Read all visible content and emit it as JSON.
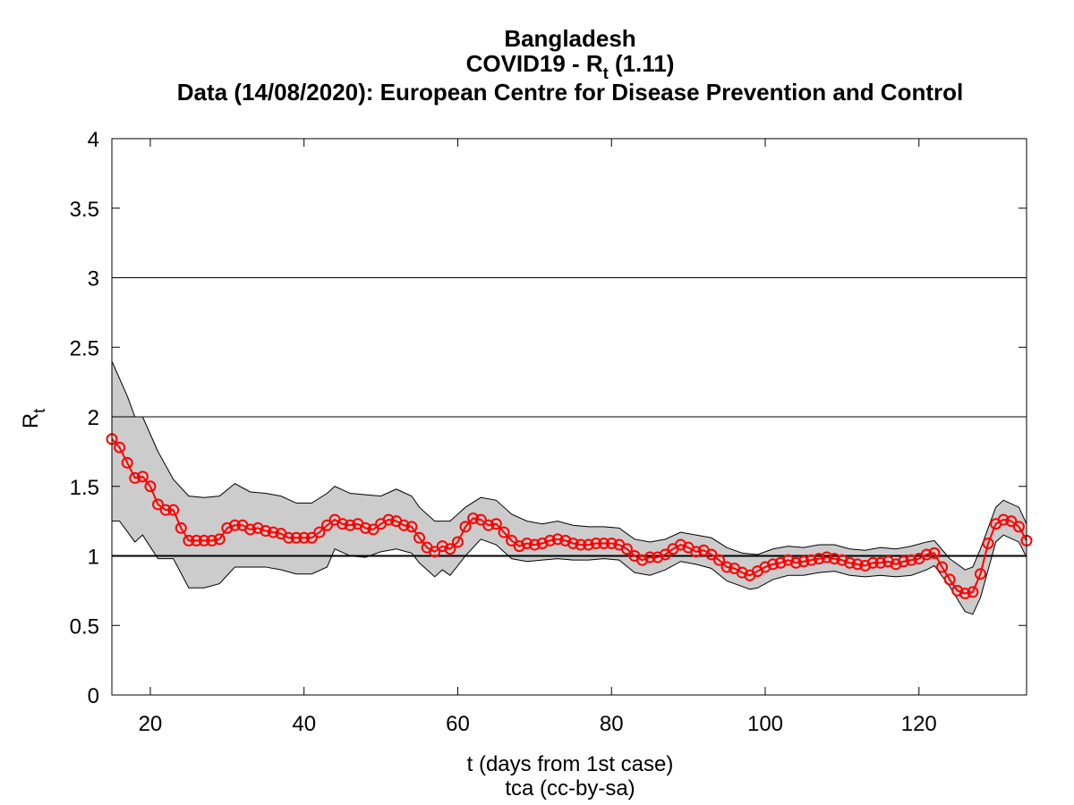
{
  "chart_data": {
    "type": "line",
    "title": "Bangladesh",
    "subtitle": {
      "text": "COVID19 - R",
      "sub": "t",
      "rest": " (1.11)"
    },
    "source": "Data (14/08/2020): European Centre for Disease Prevention and Control",
    "xlabel": "t (days from 1st case)",
    "footer": "tca (cc-by-sa)",
    "ylabel": {
      "text": "R",
      "sub": "t"
    },
    "xlim": [
      15,
      134
    ],
    "ylim": [
      0,
      4
    ],
    "xticks": [
      20,
      40,
      60,
      80,
      100,
      120
    ],
    "yticks": [
      0,
      0.5,
      1,
      1.5,
      2,
      2.5,
      3,
      3.5,
      4
    ],
    "hlines": [
      1,
      2,
      3
    ],
    "color": "#ff0000",
    "band_color": "#cccccc",
    "x": [
      15,
      16,
      17,
      18,
      19,
      20,
      21,
      22,
      23,
      24,
      25,
      26,
      27,
      28,
      29,
      30,
      31,
      32,
      33,
      34,
      35,
      36,
      37,
      38,
      39,
      40,
      41,
      42,
      43,
      44,
      45,
      46,
      47,
      48,
      49,
      50,
      51,
      52,
      53,
      54,
      55,
      56,
      57,
      58,
      59,
      60,
      61,
      62,
      63,
      64,
      65,
      66,
      67,
      68,
      69,
      70,
      71,
      72,
      73,
      74,
      75,
      76,
      77,
      78,
      79,
      80,
      81,
      82,
      83,
      84,
      85,
      86,
      87,
      88,
      89,
      90,
      91,
      92,
      93,
      94,
      95,
      96,
      97,
      98,
      99,
      100,
      101,
      102,
      103,
      104,
      105,
      106,
      107,
      108,
      109,
      110,
      111,
      112,
      113,
      114,
      115,
      116,
      117,
      118,
      119,
      120,
      121,
      122,
      123,
      124,
      125,
      126,
      127,
      128,
      129,
      130,
      131,
      132,
      133,
      134
    ],
    "values": [
      1.84,
      1.78,
      1.67,
      1.56,
      1.57,
      1.5,
      1.37,
      1.33,
      1.33,
      1.2,
      1.11,
      1.11,
      1.11,
      1.11,
      1.12,
      1.2,
      1.22,
      1.22,
      1.19,
      1.2,
      1.18,
      1.17,
      1.16,
      1.13,
      1.13,
      1.13,
      1.13,
      1.17,
      1.22,
      1.26,
      1.23,
      1.22,
      1.23,
      1.2,
      1.19,
      1.23,
      1.26,
      1.25,
      1.22,
      1.21,
      1.13,
      1.06,
      1.03,
      1.07,
      1.05,
      1.1,
      1.21,
      1.27,
      1.26,
      1.22,
      1.23,
      1.17,
      1.11,
      1.07,
      1.09,
      1.08,
      1.09,
      1.11,
      1.12,
      1.11,
      1.09,
      1.08,
      1.08,
      1.09,
      1.09,
      1.09,
      1.08,
      1.05,
      1.0,
      0.97,
      0.99,
      0.99,
      1.01,
      1.05,
      1.08,
      1.06,
      1.03,
      1.04,
      1.01,
      0.97,
      0.92,
      0.91,
      0.88,
      0.86,
      0.89,
      0.92,
      0.94,
      0.95,
      0.97,
      0.95,
      0.96,
      0.97,
      0.98,
      0.99,
      0.98,
      0.97,
      0.95,
      0.94,
      0.93,
      0.95,
      0.95,
      0.96,
      0.94,
      0.96,
      0.97,
      0.98,
      1.01,
      1.02,
      0.92,
      0.83,
      0.75,
      0.73,
      0.74,
      0.87,
      1.09,
      1.23,
      1.26,
      1.25,
      1.21,
      1.11
    ],
    "band_upper": {
      "x": [
        15,
        17,
        18,
        19,
        21,
        23,
        25,
        27,
        29,
        31,
        33,
        35,
        37,
        39,
        41,
        43,
        44,
        46,
        48,
        50,
        52,
        54,
        55,
        57,
        59,
        61,
        63,
        65,
        67,
        69,
        71,
        73,
        75,
        77,
        79,
        81,
        83,
        85,
        87,
        89,
        91,
        93,
        95,
        97,
        99,
        101,
        103,
        105,
        107,
        109,
        111,
        113,
        115,
        117,
        119,
        121,
        122,
        124,
        126,
        127,
        128,
        130,
        131,
        133,
        134
      ],
      "values": [
        2.4,
        2.15,
        2.0,
        2.0,
        1.75,
        1.55,
        1.43,
        1.42,
        1.43,
        1.52,
        1.46,
        1.45,
        1.43,
        1.38,
        1.38,
        1.45,
        1.5,
        1.45,
        1.44,
        1.43,
        1.48,
        1.43,
        1.35,
        1.25,
        1.25,
        1.35,
        1.42,
        1.4,
        1.3,
        1.25,
        1.23,
        1.25,
        1.22,
        1.21,
        1.21,
        1.2,
        1.12,
        1.1,
        1.12,
        1.17,
        1.15,
        1.13,
        1.06,
        1.02,
        1.01,
        1.05,
        1.07,
        1.06,
        1.08,
        1.08,
        1.05,
        1.04,
        1.06,
        1.05,
        1.07,
        1.1,
        1.11,
        0.98,
        0.9,
        0.92,
        1.05,
        1.35,
        1.4,
        1.35,
        1.23
      ]
    },
    "band_lower": {
      "x": [
        15,
        16,
        18,
        19,
        21,
        23,
        25,
        27,
        29,
        31,
        33,
        35,
        37,
        39,
        41,
        43,
        44,
        46,
        48,
        50,
        52,
        54,
        55,
        57,
        58,
        59,
        61,
        63,
        65,
        67,
        69,
        71,
        73,
        75,
        77,
        79,
        81,
        83,
        85,
        87,
        89,
        91,
        93,
        95,
        97,
        98,
        99,
        101,
        103,
        105,
        107,
        109,
        111,
        113,
        115,
        117,
        119,
        121,
        122,
        124,
        126,
        127,
        128,
        130,
        131,
        133,
        134
      ],
      "values": [
        1.25,
        1.25,
        1.1,
        1.15,
        0.98,
        0.98,
        0.77,
        0.77,
        0.8,
        0.92,
        0.92,
        0.92,
        0.9,
        0.87,
        0.87,
        0.92,
        1.05,
        1.0,
        0.99,
        1.03,
        1.05,
        1.02,
        0.95,
        0.85,
        0.9,
        0.86,
        1.0,
        1.12,
        1.08,
        0.98,
        0.96,
        0.97,
        0.98,
        0.97,
        0.97,
        0.98,
        0.97,
        0.88,
        0.86,
        0.9,
        0.96,
        0.94,
        0.91,
        0.82,
        0.78,
        0.76,
        0.77,
        0.83,
        0.86,
        0.86,
        0.88,
        0.89,
        0.86,
        0.85,
        0.86,
        0.85,
        0.86,
        0.9,
        0.93,
        0.78,
        0.6,
        0.58,
        0.7,
        1.1,
        1.15,
        1.1,
        0.99
      ]
    }
  }
}
